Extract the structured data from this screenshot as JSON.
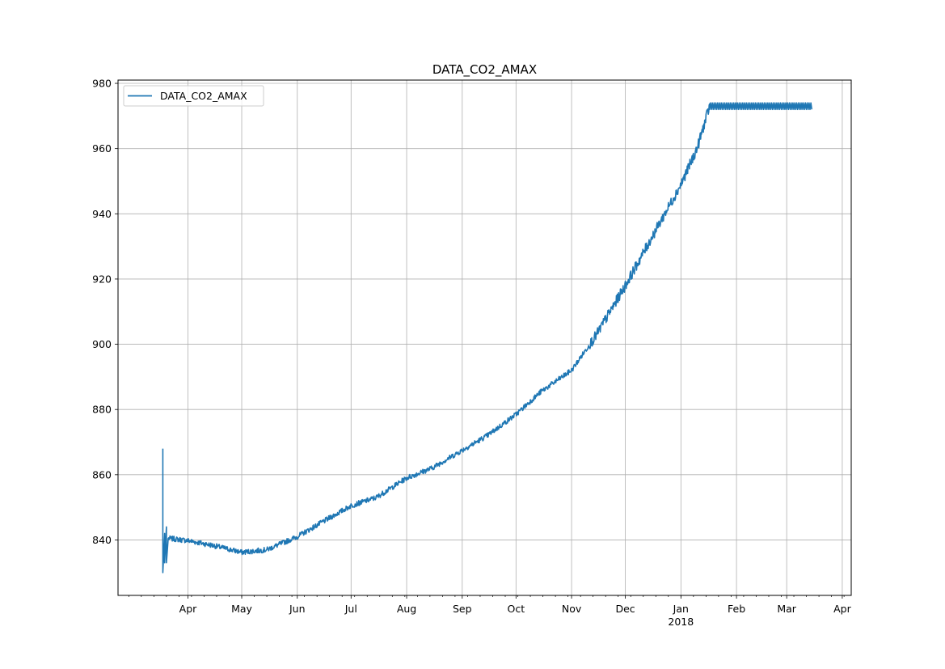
{
  "chart_data": {
    "type": "line",
    "title": "DATA_CO2_AMAX",
    "xlabel": "",
    "ylabel": "",
    "x_range": [
      "2017-02-21",
      "2018-04-06"
    ],
    "ylim": [
      823,
      981
    ],
    "grid": true,
    "legend_position": "top-left",
    "line_color": "#1f77b4",
    "x_ticks": [
      {
        "date": "2017-04-01",
        "label": "Apr",
        "sublabel": ""
      },
      {
        "date": "2017-05-01",
        "label": "May",
        "sublabel": ""
      },
      {
        "date": "2017-06-01",
        "label": "Jun",
        "sublabel": ""
      },
      {
        "date": "2017-07-01",
        "label": "Jul",
        "sublabel": ""
      },
      {
        "date": "2017-08-01",
        "label": "Aug",
        "sublabel": ""
      },
      {
        "date": "2017-09-01",
        "label": "Sep",
        "sublabel": ""
      },
      {
        "date": "2017-10-01",
        "label": "Oct",
        "sublabel": ""
      },
      {
        "date": "2017-11-01",
        "label": "Nov",
        "sublabel": ""
      },
      {
        "date": "2017-12-01",
        "label": "Dec",
        "sublabel": ""
      },
      {
        "date": "2018-01-01",
        "label": "Jan",
        "sublabel": "2018"
      },
      {
        "date": "2018-02-01",
        "label": "Feb",
        "sublabel": ""
      },
      {
        "date": "2018-03-01",
        "label": "Mar",
        "sublabel": ""
      },
      {
        "date": "2018-04-01",
        "label": "Apr",
        "sublabel": ""
      }
    ],
    "y_ticks": [
      840,
      860,
      880,
      900,
      920,
      940,
      960,
      980
    ],
    "series": [
      {
        "name": "DATA_CO2_AMAX",
        "points": [
          [
            "2017-03-18",
            868
          ],
          [
            "2017-03-18",
            830
          ],
          [
            "2017-03-19",
            842
          ],
          [
            "2017-03-19",
            833
          ],
          [
            "2017-03-20",
            844
          ],
          [
            "2017-03-20",
            833
          ],
          [
            "2017-03-21",
            840.5
          ],
          [
            "2017-04-01",
            839.8
          ],
          [
            "2017-04-15",
            838.3
          ],
          [
            "2017-05-01",
            836.2
          ],
          [
            "2017-05-15",
            837.0
          ],
          [
            "2017-06-01",
            841.0
          ],
          [
            "2017-06-15",
            845.5
          ],
          [
            "2017-07-01",
            850.5
          ],
          [
            "2017-07-15",
            853.0
          ],
          [
            "2017-08-01",
            859.0
          ],
          [
            "2017-08-15",
            862.0
          ],
          [
            "2017-09-01",
            867.5
          ],
          [
            "2017-09-15",
            872.0
          ],
          [
            "2017-10-01",
            878.5
          ],
          [
            "2017-10-15",
            885.5
          ],
          [
            "2017-11-01",
            892.0
          ],
          [
            "2017-11-15",
            903.0
          ],
          [
            "2017-12-01",
            918.0
          ],
          [
            "2017-12-15",
            932.0
          ],
          [
            "2018-01-01",
            949.0
          ],
          [
            "2018-01-10",
            960.0
          ],
          [
            "2018-01-17",
            973.0
          ],
          [
            "2018-03-15",
            973.0
          ]
        ]
      }
    ]
  }
}
